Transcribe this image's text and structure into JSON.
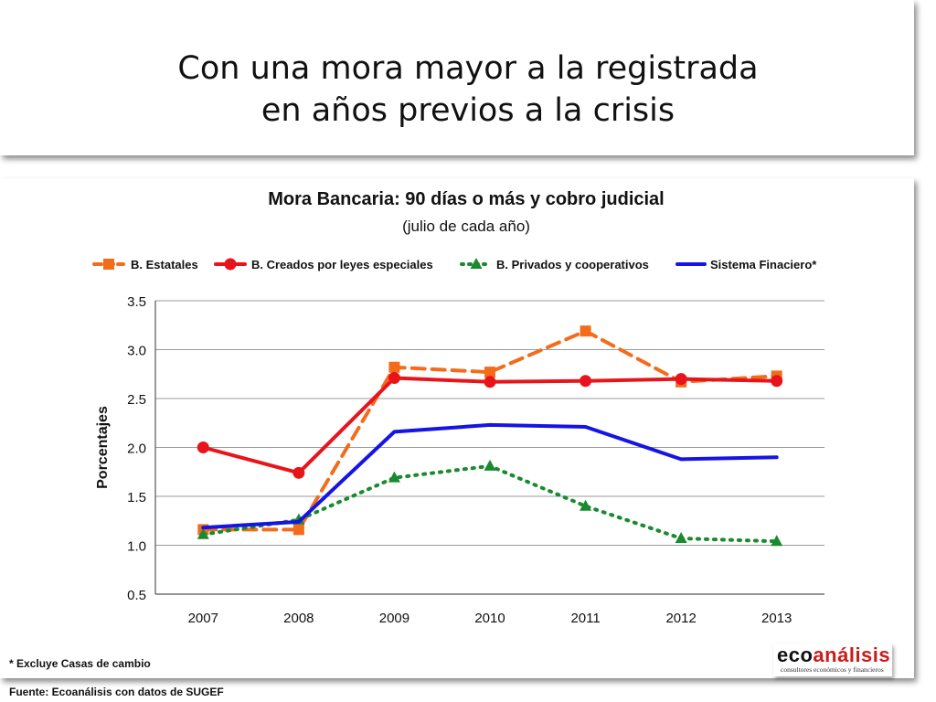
{
  "slide": {
    "title_line1": "Con una mora mayor a la registrada",
    "title_line2": "en años previos a la crisis"
  },
  "chart_data": {
    "type": "line",
    "title": "Mora Bancaria: 90 días o más y cobro judicial",
    "subtitle": "(julio de cada año)",
    "xlabel": "",
    "ylabel": "Porcentajes",
    "categories": [
      "2007",
      "2008",
      "2009",
      "2010",
      "2011",
      "2012",
      "2013"
    ],
    "ylim": [
      0.5,
      3.5
    ],
    "yticks": [
      "0.5",
      "1.0",
      "1.5",
      "2.0",
      "2.5",
      "3.0",
      "3.5"
    ],
    "grid": true,
    "legend_position": "top",
    "series": [
      {
        "name": "B. Estatales",
        "values": [
          1.16,
          1.16,
          2.82,
          2.77,
          3.19,
          2.67,
          2.73
        ],
        "color": "#f26c1c",
        "style": "dashed",
        "marker": "square"
      },
      {
        "name": "B. Creados por leyes especiales",
        "values": [
          2.0,
          1.74,
          2.71,
          2.67,
          2.68,
          2.7,
          2.68
        ],
        "color": "#e8141b",
        "style": "solid",
        "marker": "circle"
      },
      {
        "name": "B. Privados y cooperativos",
        "values": [
          1.11,
          1.26,
          1.69,
          1.81,
          1.4,
          1.07,
          1.04
        ],
        "color": "#1a8a2e",
        "style": "dotted",
        "marker": "triangle"
      },
      {
        "name": "Sistema Finaciero*",
        "values": [
          1.18,
          1.24,
          2.16,
          2.23,
          2.21,
          1.88,
          1.9
        ],
        "color": "#1414e6",
        "style": "solid",
        "marker": "none"
      }
    ]
  },
  "footer": {
    "note": "* Excluye Casas de cambio",
    "source": "Fuente: Ecoanálisis con datos de SUGEF"
  },
  "brand": {
    "name_part1": "eco",
    "name_part2": "análisis",
    "tagline": "consultores económicos y financieros"
  }
}
